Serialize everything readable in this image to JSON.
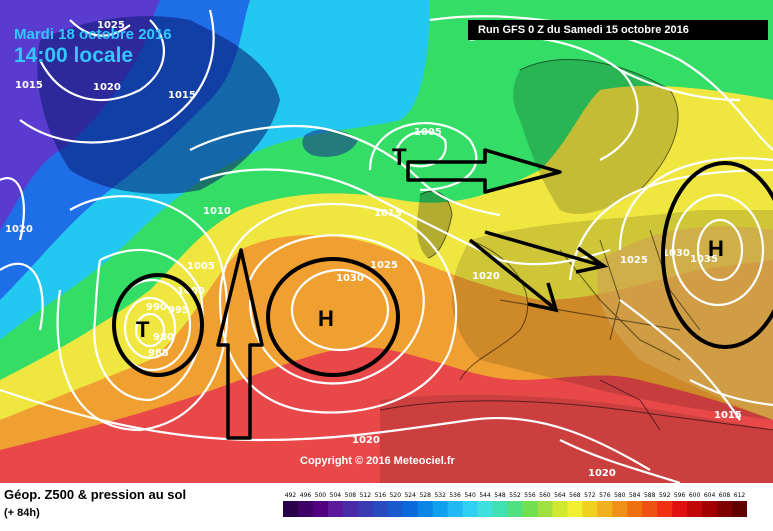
{
  "header": {
    "date": "Mardi 18 octobre 2016",
    "time": "14:00 locale",
    "run": "Run GFS 0 Z du Samedi 15 octobre 2016"
  },
  "copyright": "Copyright © 2016 Meteociel.fr",
  "footer": {
    "title": "Géop. Z500 & pression au sol",
    "subtitle": "(+ 84h)",
    "scale_labels": [
      "492",
      "496",
      "500",
      "504",
      "508",
      "512",
      "516",
      "520",
      "524",
      "528",
      "532",
      "536",
      "540",
      "544",
      "548",
      "552",
      "556",
      "560",
      "564",
      "568",
      "572",
      "576",
      "580",
      "584",
      "588",
      "592",
      "596",
      "600",
      "604",
      "608",
      "612"
    ],
    "scale_colors": [
      "#2a004a",
      "#3d0066",
      "#500080",
      "#5a1a99",
      "#4a2aa6",
      "#3a3ab3",
      "#2a4ac0",
      "#1a5acd",
      "#0a6adb",
      "#0a86e6",
      "#10a0f0",
      "#20b8f5",
      "#30d0f5",
      "#40e0e0",
      "#40e0b0",
      "#50e080",
      "#70e050",
      "#a0e040",
      "#d0e830",
      "#f0f030",
      "#f0d020",
      "#f0b020",
      "#f09018",
      "#f07010",
      "#f05010",
      "#f03010",
      "#e01010",
      "#c00808",
      "#a00000",
      "#800000",
      "#600000"
    ]
  },
  "pressure_labels": {
    "items": [
      "1025",
      "1020",
      "1015",
      "1015",
      "1020",
      "1010",
      "1005",
      "1000",
      "995",
      "990",
      "980",
      "985",
      "1030",
      "1025",
      "1020",
      "1005",
      "1015",
      "1025",
      "1030",
      "1035",
      "1015",
      "1020",
      "1020"
    ]
  },
  "systems": {
    "low_1": "T",
    "low_2": "T",
    "high_1": "H",
    "high_2": "H"
  },
  "map_colors": {
    "purple": "#5a3bd0",
    "blue": "#1e6ee8",
    "cyan": "#23c8f0",
    "green": "#33dd66",
    "yellow": "#f0e640",
    "orange": "#f0a030",
    "red": "#e84848",
    "land": "#000000",
    "isobar": "#ffffff"
  }
}
